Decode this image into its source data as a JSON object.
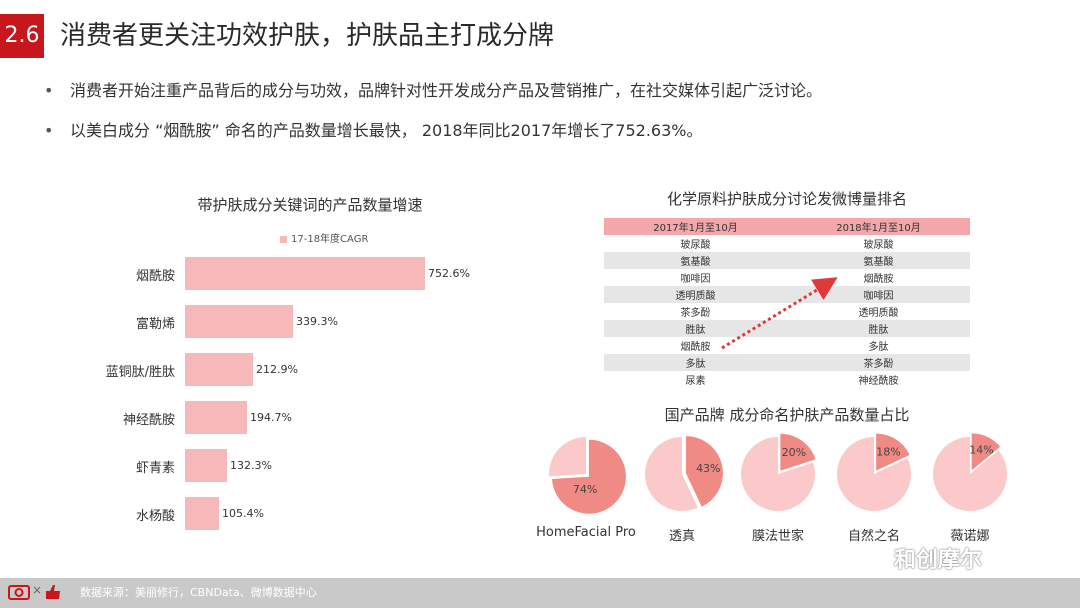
{
  "header": {
    "section_number": "2.6",
    "title": "消费者更关注功效护肤，护肤品主打成分牌"
  },
  "bullets": [
    "消费者开始注重产品背后的成分与功效，品牌针对性开发成分产品及营销推广，在社交媒体引起广泛讨论。",
    "以美白成分 “烟酰胺” 命名的产品数量增长最快， 2018年同比2017年增长了752.63%。"
  ],
  "bullet_symbol": "•",
  "bar_chart": {
    "title": "带护肤成分关键词的产品数量增速",
    "legend": "17-18年度CAGR",
    "color": "#f7b8b9"
  },
  "chart_data": [
    {
      "type": "bar",
      "orientation": "horizontal",
      "title": "带护肤成分关键词的产品数量增速",
      "categories": [
        "烟酰胺",
        "富勒烯",
        "蓝铜肽/胜肽",
        "神经酰胺",
        "虾青素",
        "水杨酸"
      ],
      "series": [
        {
          "name": "17-18年度CAGR",
          "values": [
            752.6,
            339.3,
            212.9,
            194.7,
            132.3,
            105.4
          ]
        }
      ],
      "value_labels": [
        "752.6%",
        "339.3%",
        "212.9%",
        "194.7%",
        "132.3%",
        "105.4%"
      ],
      "unit": "%",
      "xlim": [
        0,
        800
      ],
      "grid": false,
      "legend_position": "top"
    },
    {
      "type": "pie",
      "title": "国产品牌 成分命名护肤产品数量占比",
      "charts": [
        {
          "name": "HomeFacial Pro",
          "value": 74,
          "label": "74%"
        },
        {
          "name": "透真",
          "value": 43,
          "label": "43%"
        },
        {
          "name": "膜法世家",
          "value": 20,
          "label": "20%"
        },
        {
          "name": "自然之名",
          "value": 18,
          "label": "18%"
        },
        {
          "name": "薇诺娜",
          "value": 14,
          "label": "14%"
        }
      ],
      "colors": {
        "share": "#f08a85",
        "rest": "#fbc9c9"
      }
    }
  ],
  "ranking": {
    "title": "化学原料护肤成分讨论发微博量排名",
    "columns": [
      "2017年1月至10月",
      "2018年1月至10月"
    ],
    "rows": [
      [
        "玻尿酸",
        "玻尿酸"
      ],
      [
        "氨基酸",
        "氨基酸"
      ],
      [
        "咖啡因",
        "烟酰胺"
      ],
      [
        "透明质酸",
        "咖啡因"
      ],
      [
        "茶多酚",
        "透明质酸"
      ],
      [
        "胜肽",
        "胜肽"
      ],
      [
        "烟酰胺",
        "多肽"
      ],
      [
        "多肽",
        "茶多酚"
      ],
      [
        "尿素",
        "神经酰胺"
      ]
    ],
    "header_color": "#f3a7aa",
    "arrow_color": "#e0393a"
  },
  "pies": {
    "title": "国产品牌 成分命名护肤产品数量占比"
  },
  "footer": {
    "source": "数据来源：美丽修行，CBNData、微博数据中心",
    "logo_text": "×"
  },
  "watermark": "和创摩尔",
  "colors": {
    "accent": "#c8161d",
    "bar": "#f7b8b9",
    "footer": "#c9c9c9"
  }
}
